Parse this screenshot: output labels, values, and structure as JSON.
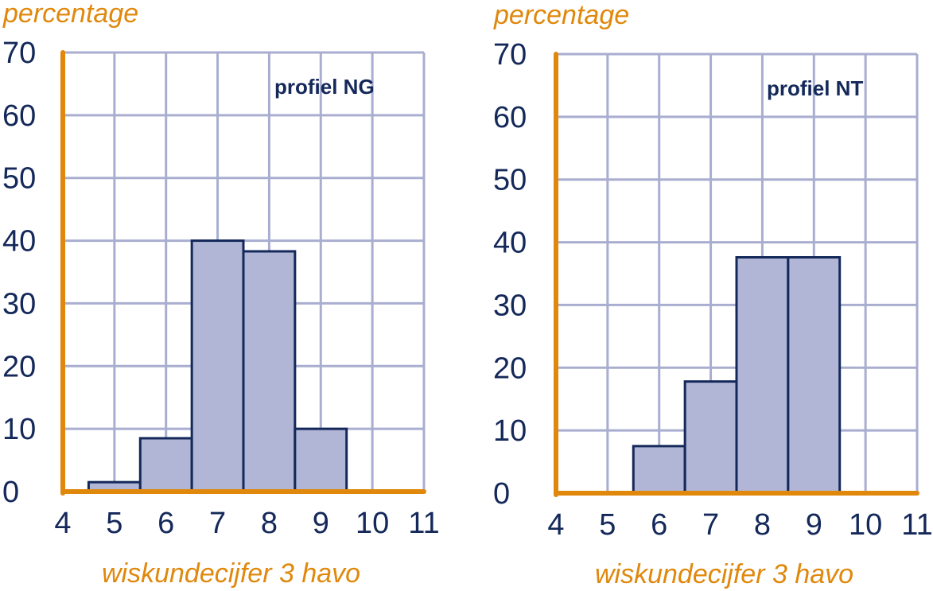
{
  "colors": {
    "axis": "#e0880c",
    "grid": "#a9aed0",
    "bar_fill": "#b1b6d6",
    "bar_stroke": "#14285a",
    "text": "#14285a"
  },
  "chart_data": [
    {
      "type": "bar",
      "label": "profiel NG",
      "ylabel": "percentage",
      "xlabel": "wiskundecijfer 3 havo",
      "xlim": [
        4,
        11
      ],
      "ylim": [
        0,
        70
      ],
      "x_ticks": [
        "4",
        "5",
        "6",
        "7",
        "8",
        "9",
        "10",
        "11"
      ],
      "y_ticks": [
        "0",
        "10",
        "20",
        "30",
        "40",
        "50",
        "60",
        "70"
      ],
      "grid": true,
      "categories": [
        "5",
        "6",
        "7",
        "8",
        "9"
      ],
      "values": [
        1.5,
        8.5,
        40,
        38.3,
        10
      ]
    },
    {
      "type": "bar",
      "label": "profiel NT",
      "ylabel": "percentage",
      "xlabel": "wiskundecijfer 3 havo",
      "xlim": [
        4,
        11
      ],
      "ylim": [
        0,
        70
      ],
      "x_ticks": [
        "4",
        "5",
        "6",
        "7",
        "8",
        "9",
        "10",
        "11"
      ],
      "y_ticks": [
        "0",
        "10",
        "20",
        "30",
        "40",
        "50",
        "60",
        "70"
      ],
      "grid": true,
      "categories": [
        "6",
        "7",
        "8",
        "9"
      ],
      "values": [
        7.5,
        17.8,
        37.6,
        37.6
      ]
    }
  ]
}
